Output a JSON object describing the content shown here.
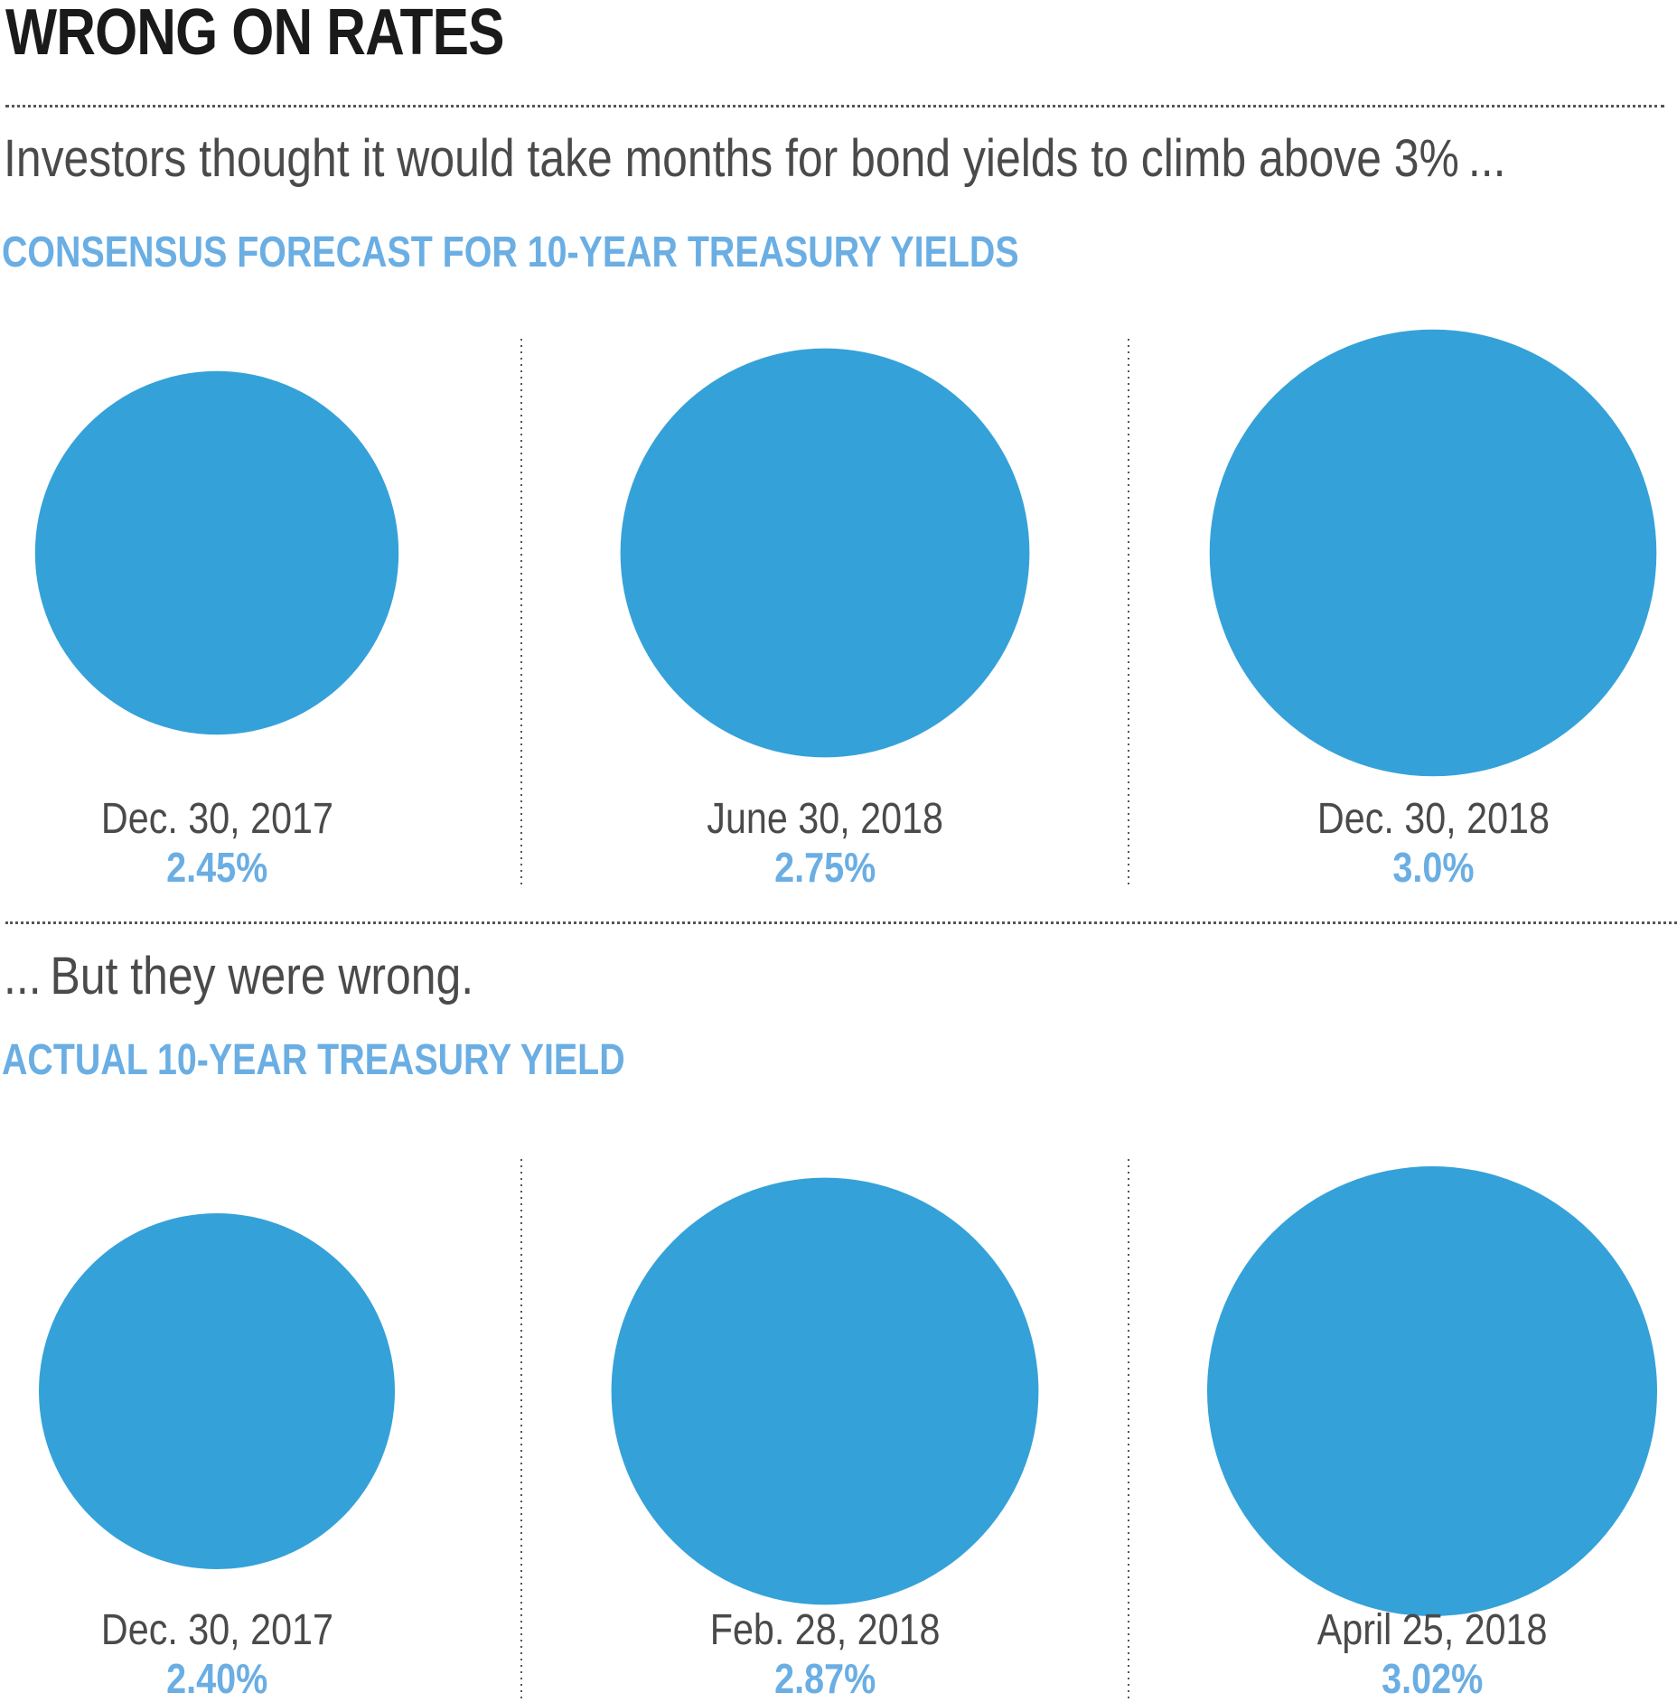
{
  "title": "WRONG ON RATES",
  "intro_text": "Investors thought it would take months for bond yields to climb above 3% ...",
  "outro_text": "... But they were wrong.",
  "colors": {
    "circle_fill": "#35a1d9",
    "accent_text": "#6aaee3",
    "body_text": "#4a4a4a",
    "title_text": "#1a1a1a"
  },
  "chart_data": [
    {
      "type": "bubble",
      "title": "CONSENSUS FORECAST FOR 10-YEAR TREASURY YIELDS",
      "categories": [
        "Dec. 30, 2017",
        "June 30, 2018",
        "Dec. 30, 2018"
      ],
      "values": [
        2.45,
        2.75,
        3.0
      ],
      "value_labels": [
        "2.45%",
        "2.75%",
        "3.0%"
      ],
      "unit": "%"
    },
    {
      "type": "bubble",
      "title": "ACTUAL 10-YEAR TREASURY YIELD",
      "categories": [
        "Dec. 30, 2017",
        "Feb. 28, 2018",
        "April 25, 2018"
      ],
      "values": [
        2.4,
        2.87,
        3.02
      ],
      "value_labels": [
        "2.40%",
        "2.87%",
        "3.02%"
      ],
      "unit": "%"
    }
  ]
}
